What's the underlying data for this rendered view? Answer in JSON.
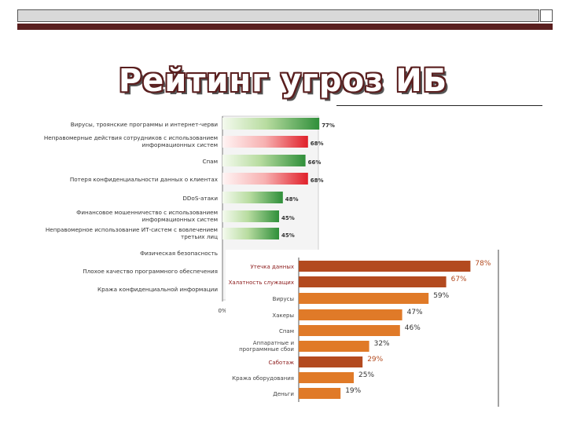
{
  "slide": {
    "title": "Рейтинг угроз ИБ",
    "colors": {
      "frame_dark": "#5a1f1f",
      "frame_light": "#d9d9d9",
      "accent_red": "#8b1a1a"
    }
  },
  "chart_data": [
    {
      "type": "bar",
      "orientation": "horizontal",
      "categories": [
        "Вирусы, троянские программы и интернет-черви",
        "Неправомерные действия сотрудников с использованием информационных систем",
        "Спам",
        "Потеря конфиденциальности данных о клиентах",
        "DDoS-атаки",
        "Финансовое мошенничество с использованием информационных систем",
        "Неправомерное использование ИТ-систем с вовлечением третьих лиц",
        "Физическая безопасность",
        "Плохое качество программного обеспечения",
        "Кража конфиденциальной информации"
      ],
      "values": [
        77,
        68,
        66,
        68,
        48,
        45,
        45,
        null,
        null,
        null
      ],
      "value_labels": [
        "77%",
        "68%",
        "66%",
        "68%",
        "48%",
        "45%",
        "45%",
        "",
        "",
        ""
      ],
      "bar_colors": [
        "green",
        "red",
        "green",
        "red",
        "green",
        "green",
        "green",
        "green",
        "green",
        "green"
      ],
      "axis_tick_label": "0%",
      "xlim": [
        0,
        100
      ]
    },
    {
      "type": "bar",
      "orientation": "horizontal",
      "categories": [
        "Утечка данных",
        "Халатность служащих",
        "Вирусы",
        "Хакеры",
        "Спам",
        "Аппаратные и программные сбои",
        "Саботаж",
        "Кража оборудования",
        "Деньги"
      ],
      "values": [
        78,
        67,
        59,
        47,
        46,
        32,
        29,
        25,
        19
      ],
      "value_labels": [
        "78%",
        "67%",
        "59%",
        "47%",
        "46%",
        "32%",
        "29%",
        "25%",
        "19%"
      ],
      "bar_colors": [
        "#b34a1f",
        "#b34a1f",
        "#e07a28",
        "#e07a28",
        "#e07a28",
        "#e07a28",
        "#b34a1f",
        "#e07a28",
        "#e07a28"
      ],
      "highlighted_labels": [
        0,
        1,
        6
      ],
      "xlim": [
        0,
        100
      ]
    }
  ]
}
